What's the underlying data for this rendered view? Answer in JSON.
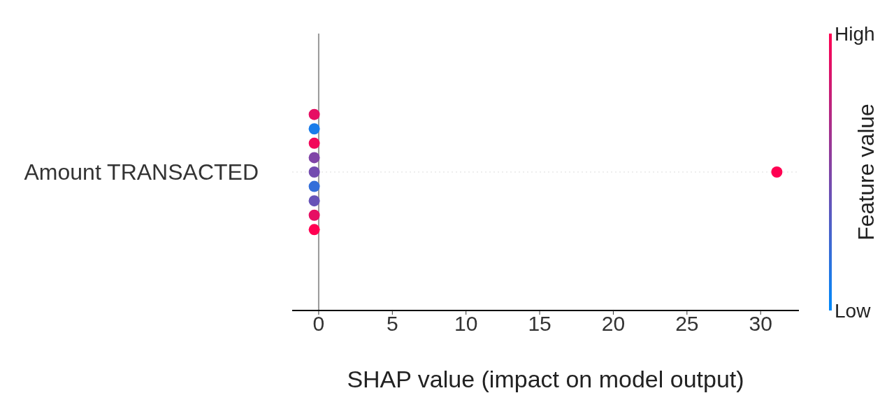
{
  "chart_data": {
    "type": "scatter",
    "orientation": "horizontal",
    "categories": [
      "Amount TRANSACTED"
    ],
    "xlabel": "SHAP value (impact on model output)",
    "clabel": "Feature value",
    "xlim": [
      -1.8,
      32.6
    ],
    "xticks": [
      0,
      5,
      10,
      15,
      20,
      25,
      30
    ],
    "clim": [
      0,
      1
    ],
    "cticks": [
      {
        "value": 0,
        "label": "Low"
      },
      {
        "value": 1,
        "label": "High"
      }
    ],
    "ref_lines": [
      {
        "axis": "x",
        "value": 0,
        "color": "#999999"
      },
      {
        "axis": "y",
        "value": "Amount TRANSACTED",
        "color": "#dddddd",
        "line_style": "dotted"
      }
    ],
    "series": [
      {
        "x": [
          "Amount TRANSACTED",
          "Amount TRANSACTED",
          "Amount TRANSACTED",
          "Amount TRANSACTED",
          "Amount TRANSACTED",
          "Amount TRANSACTED",
          "Amount TRANSACTED",
          "Amount TRANSACTED",
          "Amount TRANSACTED",
          "Amount TRANSACTED"
        ],
        "values": [
          -0.3,
          -0.3,
          -0.3,
          -0.3,
          -0.3,
          -0.3,
          -0.3,
          -0.3,
          -0.3,
          31.1
        ],
        "cvalues": [
          0.45,
          0.2,
          0.5,
          0.4,
          0.95,
          0.9,
          0.1,
          1,
          0.9,
          1
        ]
      }
    ]
  }
}
